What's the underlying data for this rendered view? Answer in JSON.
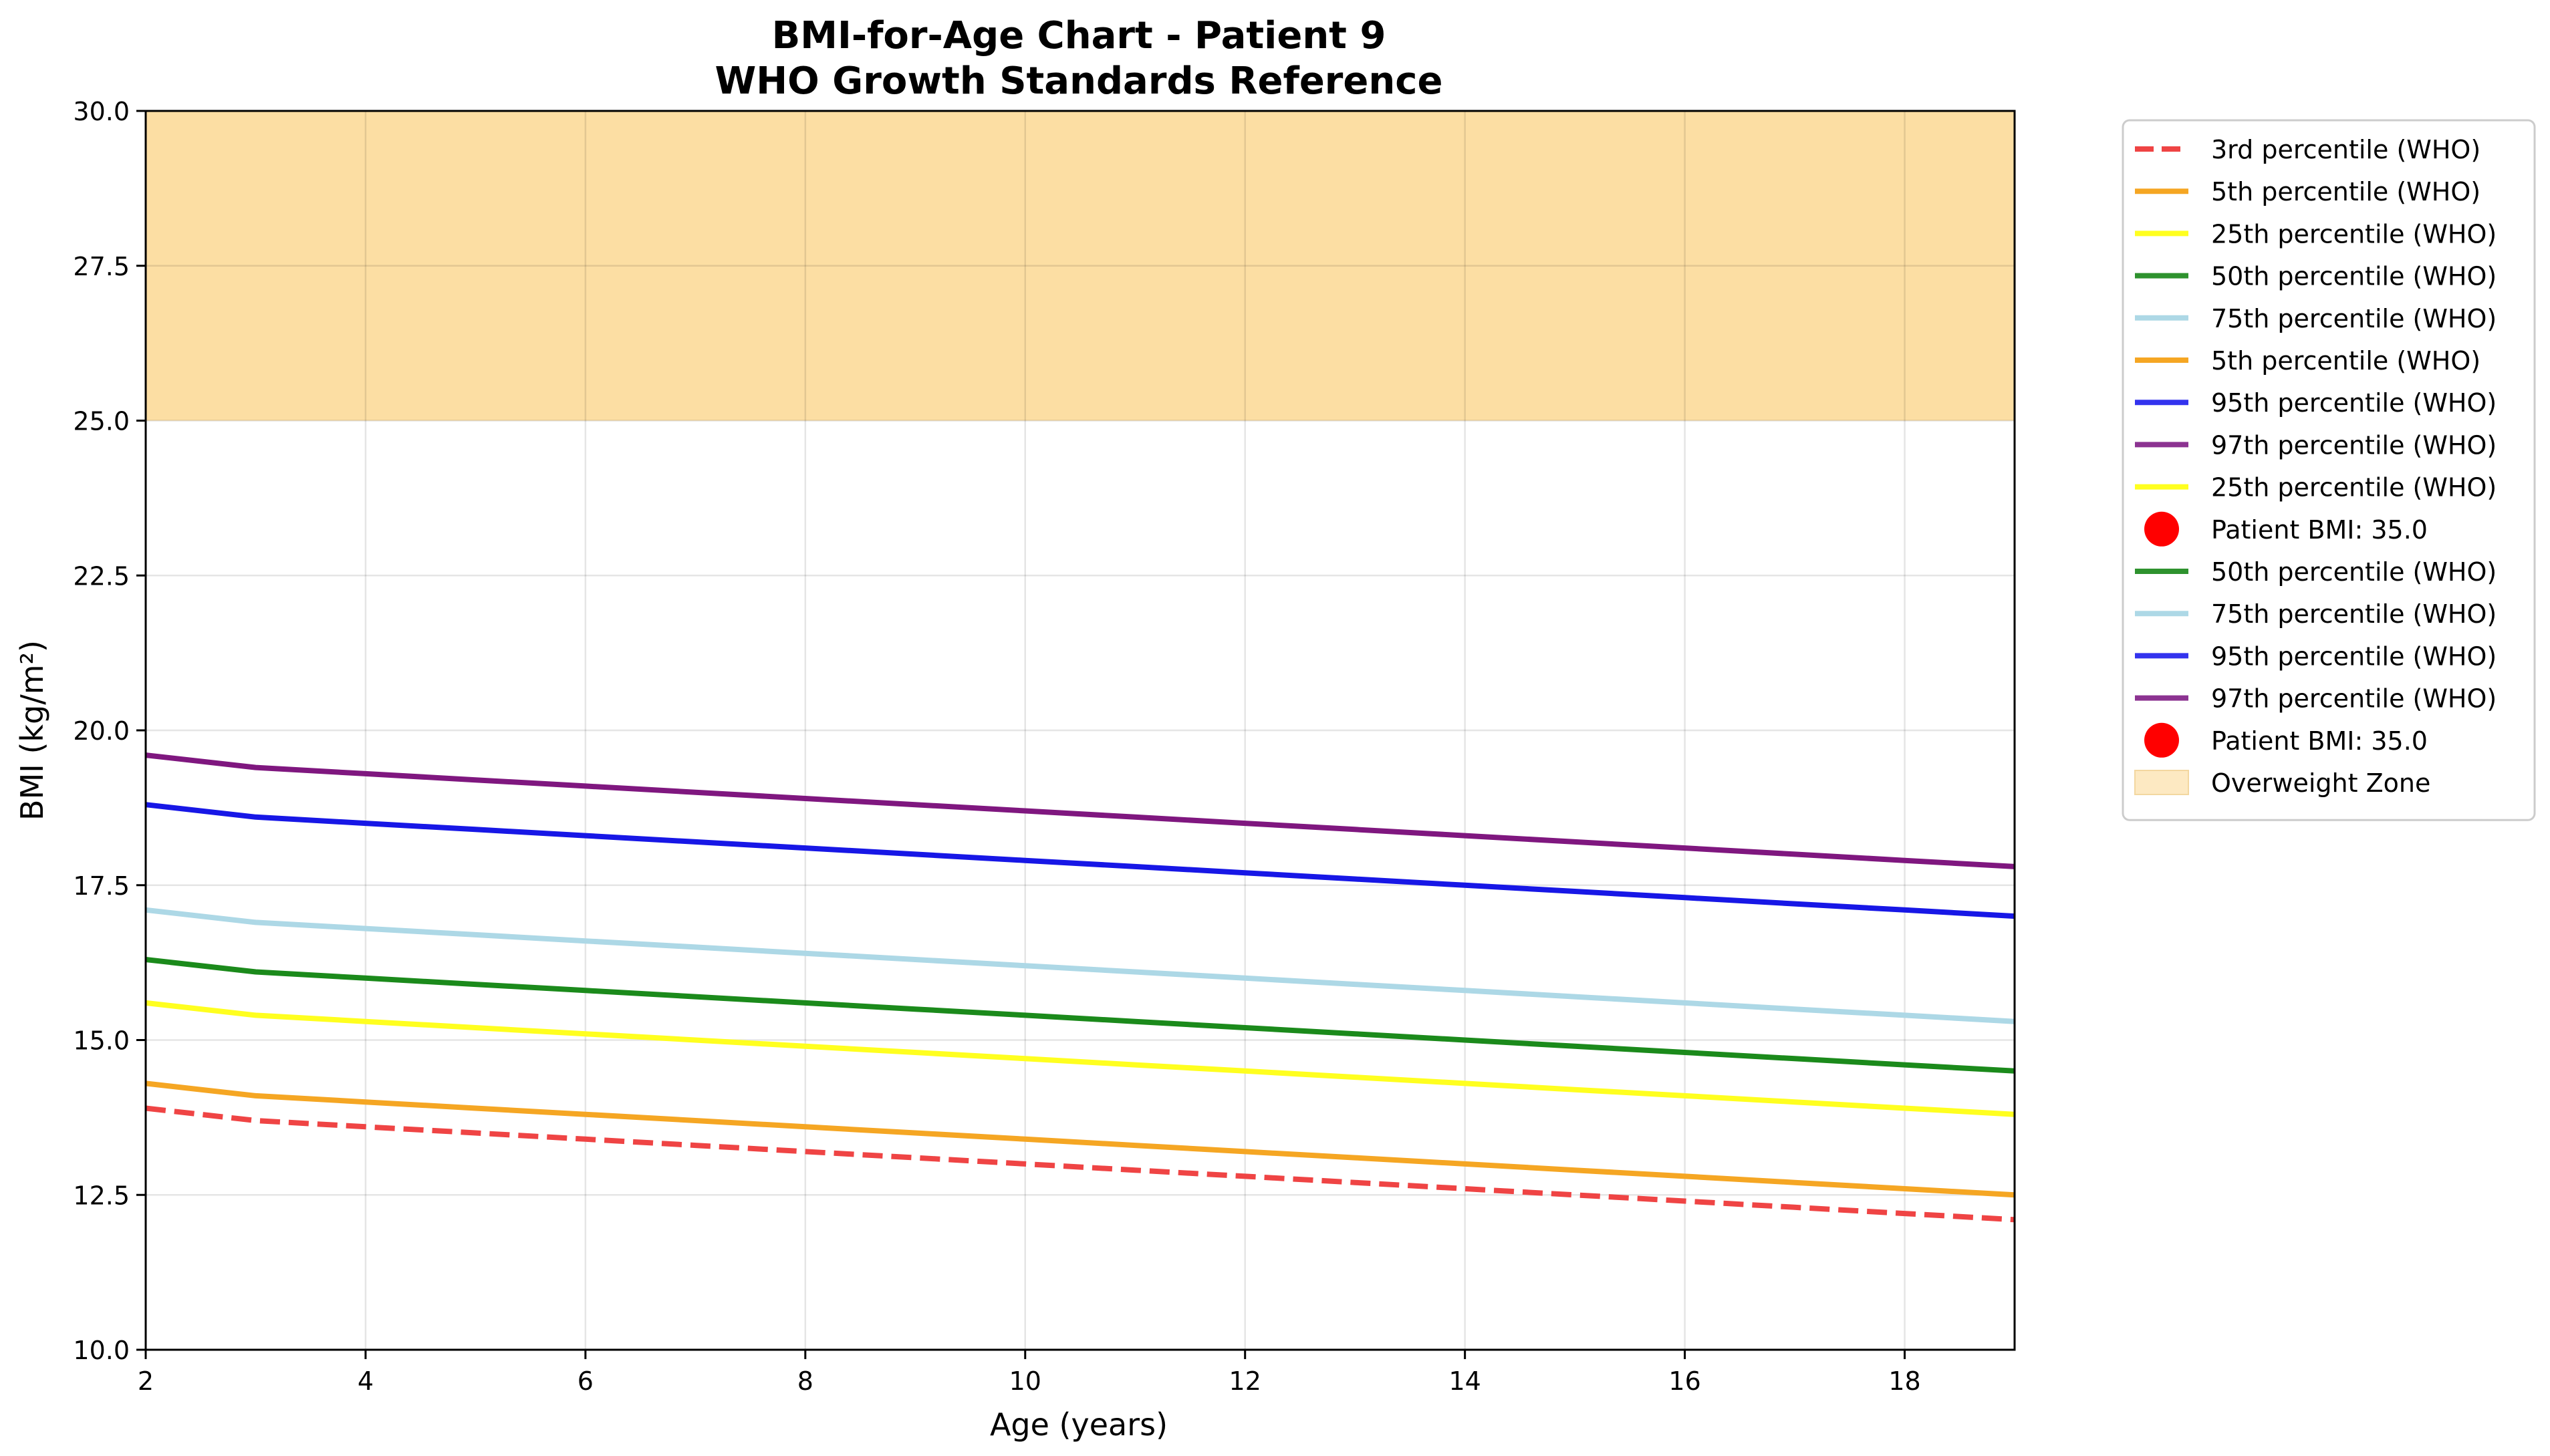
{
  "chart_data": {
    "type": "line",
    "title": "BMI-for-Age Chart - Patient 9",
    "subtitle": "WHO Growth Standards Reference",
    "xlabel": "Age (years)",
    "ylabel": "BMI (kg/m²)",
    "xlim": [
      2,
      19
    ],
    "ylim": [
      10,
      30
    ],
    "xticks": [
      2,
      4,
      6,
      8,
      10,
      12,
      14,
      16,
      18
    ],
    "xtick_labels": [
      "2",
      "4",
      "6",
      "8",
      "10",
      "12",
      "14",
      "16",
      "18"
    ],
    "yticks": [
      10,
      12.5,
      15,
      17.5,
      20,
      22.5,
      25,
      27.5,
      30
    ],
    "ytick_labels": [
      "10.0",
      "12.5",
      "15.0",
      "17.5",
      "20.0",
      "22.5",
      "25.0",
      "27.5",
      "30.0"
    ],
    "grid": true,
    "legend_position": "outside-right",
    "x": [
      2,
      3,
      4,
      5,
      6,
      7,
      8,
      9,
      10,
      11,
      12,
      13,
      14,
      15,
      16,
      17,
      18,
      19
    ],
    "series": [
      {
        "name": "3rd percentile (WHO)",
        "color": "#ef4444",
        "dashed": true,
        "values": [
          13.9,
          13.7,
          13.6,
          13.5,
          13.4,
          13.3,
          13.2,
          13.1,
          13.0,
          12.9,
          12.8,
          12.7,
          12.6,
          12.5,
          12.4,
          12.3,
          12.2,
          12.1
        ]
      },
      {
        "name": "5th percentile (WHO)",
        "color": "#f5a623",
        "values": [
          14.3,
          14.1,
          14.0,
          13.9,
          13.8,
          13.7,
          13.6,
          13.5,
          13.4,
          13.3,
          13.2,
          13.1,
          13.0,
          12.9,
          12.8,
          12.7,
          12.6,
          12.5
        ]
      },
      {
        "name": "25th percentile (WHO)",
        "color": "#ffff1f",
        "values": [
          15.6,
          15.4,
          15.3,
          15.2,
          15.1,
          15.0,
          14.9,
          14.8,
          14.7,
          14.6,
          14.5,
          14.4,
          14.3,
          14.2,
          14.1,
          14.0,
          13.9,
          13.8
        ]
      },
      {
        "name": "50th percentile (WHO)",
        "color": "#1b8a1b",
        "values": [
          16.3,
          16.1,
          16.0,
          15.9,
          15.8,
          15.7,
          15.6,
          15.5,
          15.4,
          15.3,
          15.2,
          15.1,
          15.0,
          14.9,
          14.8,
          14.7,
          14.6,
          14.5
        ]
      },
      {
        "name": "75th percentile (WHO)",
        "color": "#add8e6",
        "values": [
          17.1,
          16.9,
          16.8,
          16.7,
          16.6,
          16.5,
          16.4,
          16.3,
          16.2,
          16.1,
          16.0,
          15.9,
          15.8,
          15.7,
          15.6,
          15.5,
          15.4,
          15.3
        ]
      },
      {
        "name": "95th percentile (WHO)",
        "color": "#1717e6",
        "values": [
          18.8,
          18.6,
          18.5,
          18.4,
          18.3,
          18.2,
          18.1,
          18.0,
          17.9,
          17.8,
          17.7,
          17.6,
          17.5,
          17.4,
          17.3,
          17.2,
          17.1,
          17.0
        ]
      },
      {
        "name": "97th percentile (WHO)",
        "color": "#7f177f",
        "values": [
          19.6,
          19.4,
          19.3,
          19.2,
          19.1,
          19.0,
          18.9,
          18.8,
          18.7,
          18.6,
          18.5,
          18.4,
          18.3,
          18.2,
          18.1,
          18.0,
          17.9,
          17.8
        ]
      }
    ],
    "shaded_regions": [
      {
        "name": "Overweight Zone",
        "ymin": 25,
        "ymax": 30,
        "color": "#fcdea3"
      }
    ],
    "legend": [
      {
        "label": "3rd percentile (WHO)",
        "kind": "dashed",
        "color": "#ef4444"
      },
      {
        "label": "5th percentile (WHO)",
        "kind": "line",
        "color": "#f5a623"
      },
      {
        "label": "25th percentile (WHO)",
        "kind": "line",
        "color": "#ffff1f"
      },
      {
        "label": "50th percentile (WHO)",
        "kind": "line",
        "color": "#2e922e"
      },
      {
        "label": "75th percentile (WHO)",
        "kind": "line",
        "color": "#add8e6"
      },
      {
        "label": "5th percentile (WHO)",
        "kind": "line",
        "color": "#f5a623"
      },
      {
        "label": "95th percentile (WHO)",
        "kind": "line",
        "color": "#3333ee"
      },
      {
        "label": "97th percentile (WHO)",
        "kind": "line",
        "color": "#8c3391"
      },
      {
        "label": "25th percentile (WHO)",
        "kind": "line",
        "color": "#ffff1f"
      },
      {
        "label": "Patient BMI: 35.0",
        "kind": "marker",
        "color": "#ff0000"
      },
      {
        "label": "50th percentile (WHO)",
        "kind": "line",
        "color": "#2e922e"
      },
      {
        "label": "75th percentile (WHO)",
        "kind": "line",
        "color": "#add8e6"
      },
      {
        "label": "95th percentile (WHO)",
        "kind": "line",
        "color": "#3333ee"
      },
      {
        "label": "97th percentile (WHO)",
        "kind": "line",
        "color": "#8c3391"
      },
      {
        "label": "Patient BMI: 35.0",
        "kind": "marker",
        "color": "#ff0000"
      },
      {
        "label": "Overweight Zone",
        "kind": "patch",
        "color": "#fde9c2"
      }
    ]
  }
}
